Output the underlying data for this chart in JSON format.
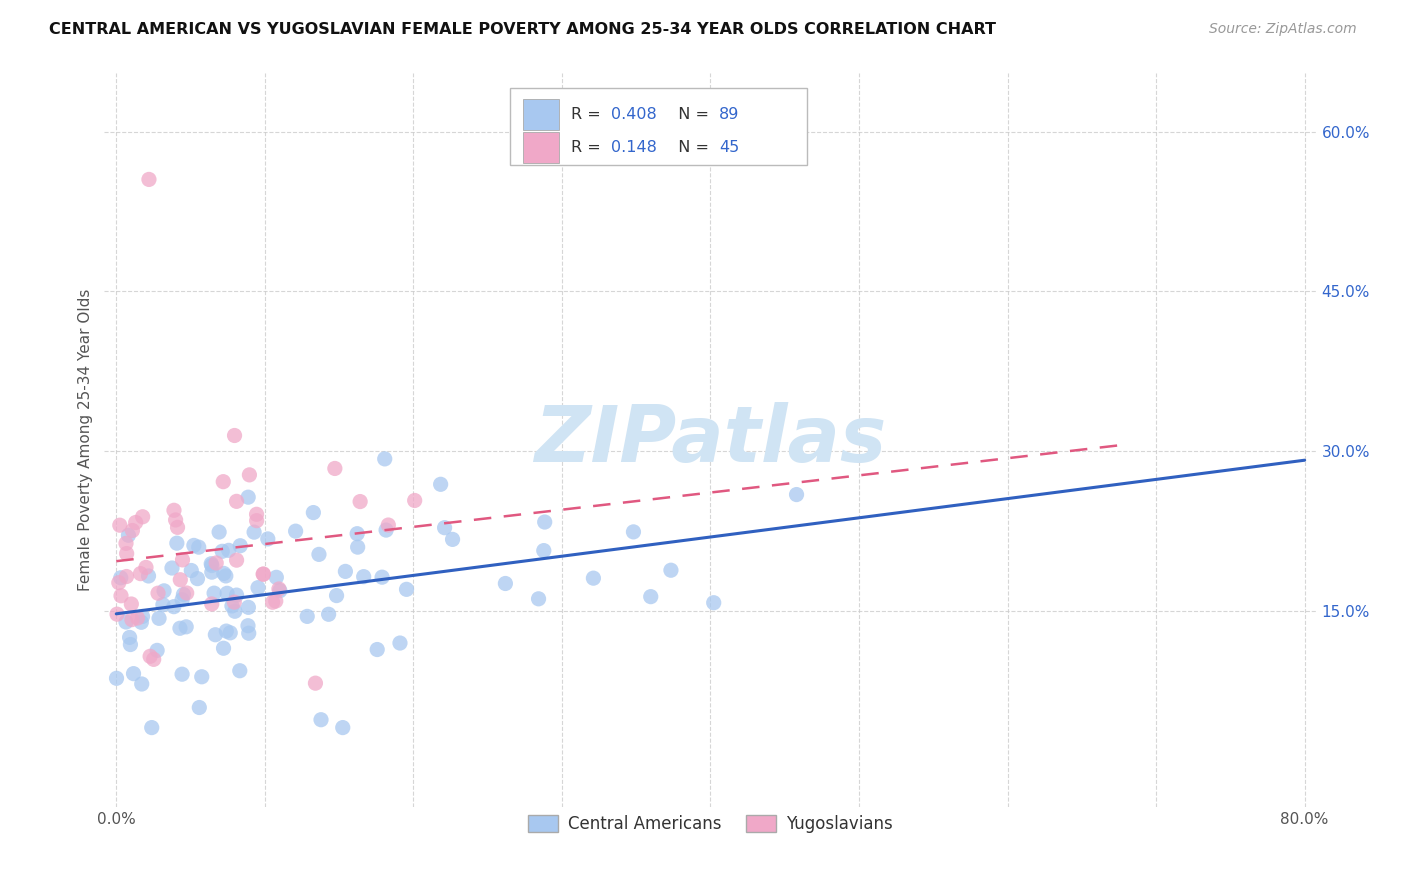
{
  "title": "CENTRAL AMERICAN VS YUGOSLAVIAN FEMALE POVERTY AMONG 25-34 YEAR OLDS CORRELATION CHART",
  "source": "Source: ZipAtlas.com",
  "ylabel": "Female Poverty Among 25-34 Year Olds",
  "r_central": 0.408,
  "n_central": 89,
  "r_yugoslav": 0.148,
  "n_yugoslav": 45,
  "central_color": "#a8c8f0",
  "yugoslav_color": "#f0a8c8",
  "central_line_color": "#3060c0",
  "yugoslav_line_color": "#e05880",
  "watermark_color": "#d0e4f4",
  "legend_r_color": "#3366cc",
  "legend_n_color": "#3366cc",
  "ytick_color": "#3366cc",
  "grid_color": "#cccccc"
}
